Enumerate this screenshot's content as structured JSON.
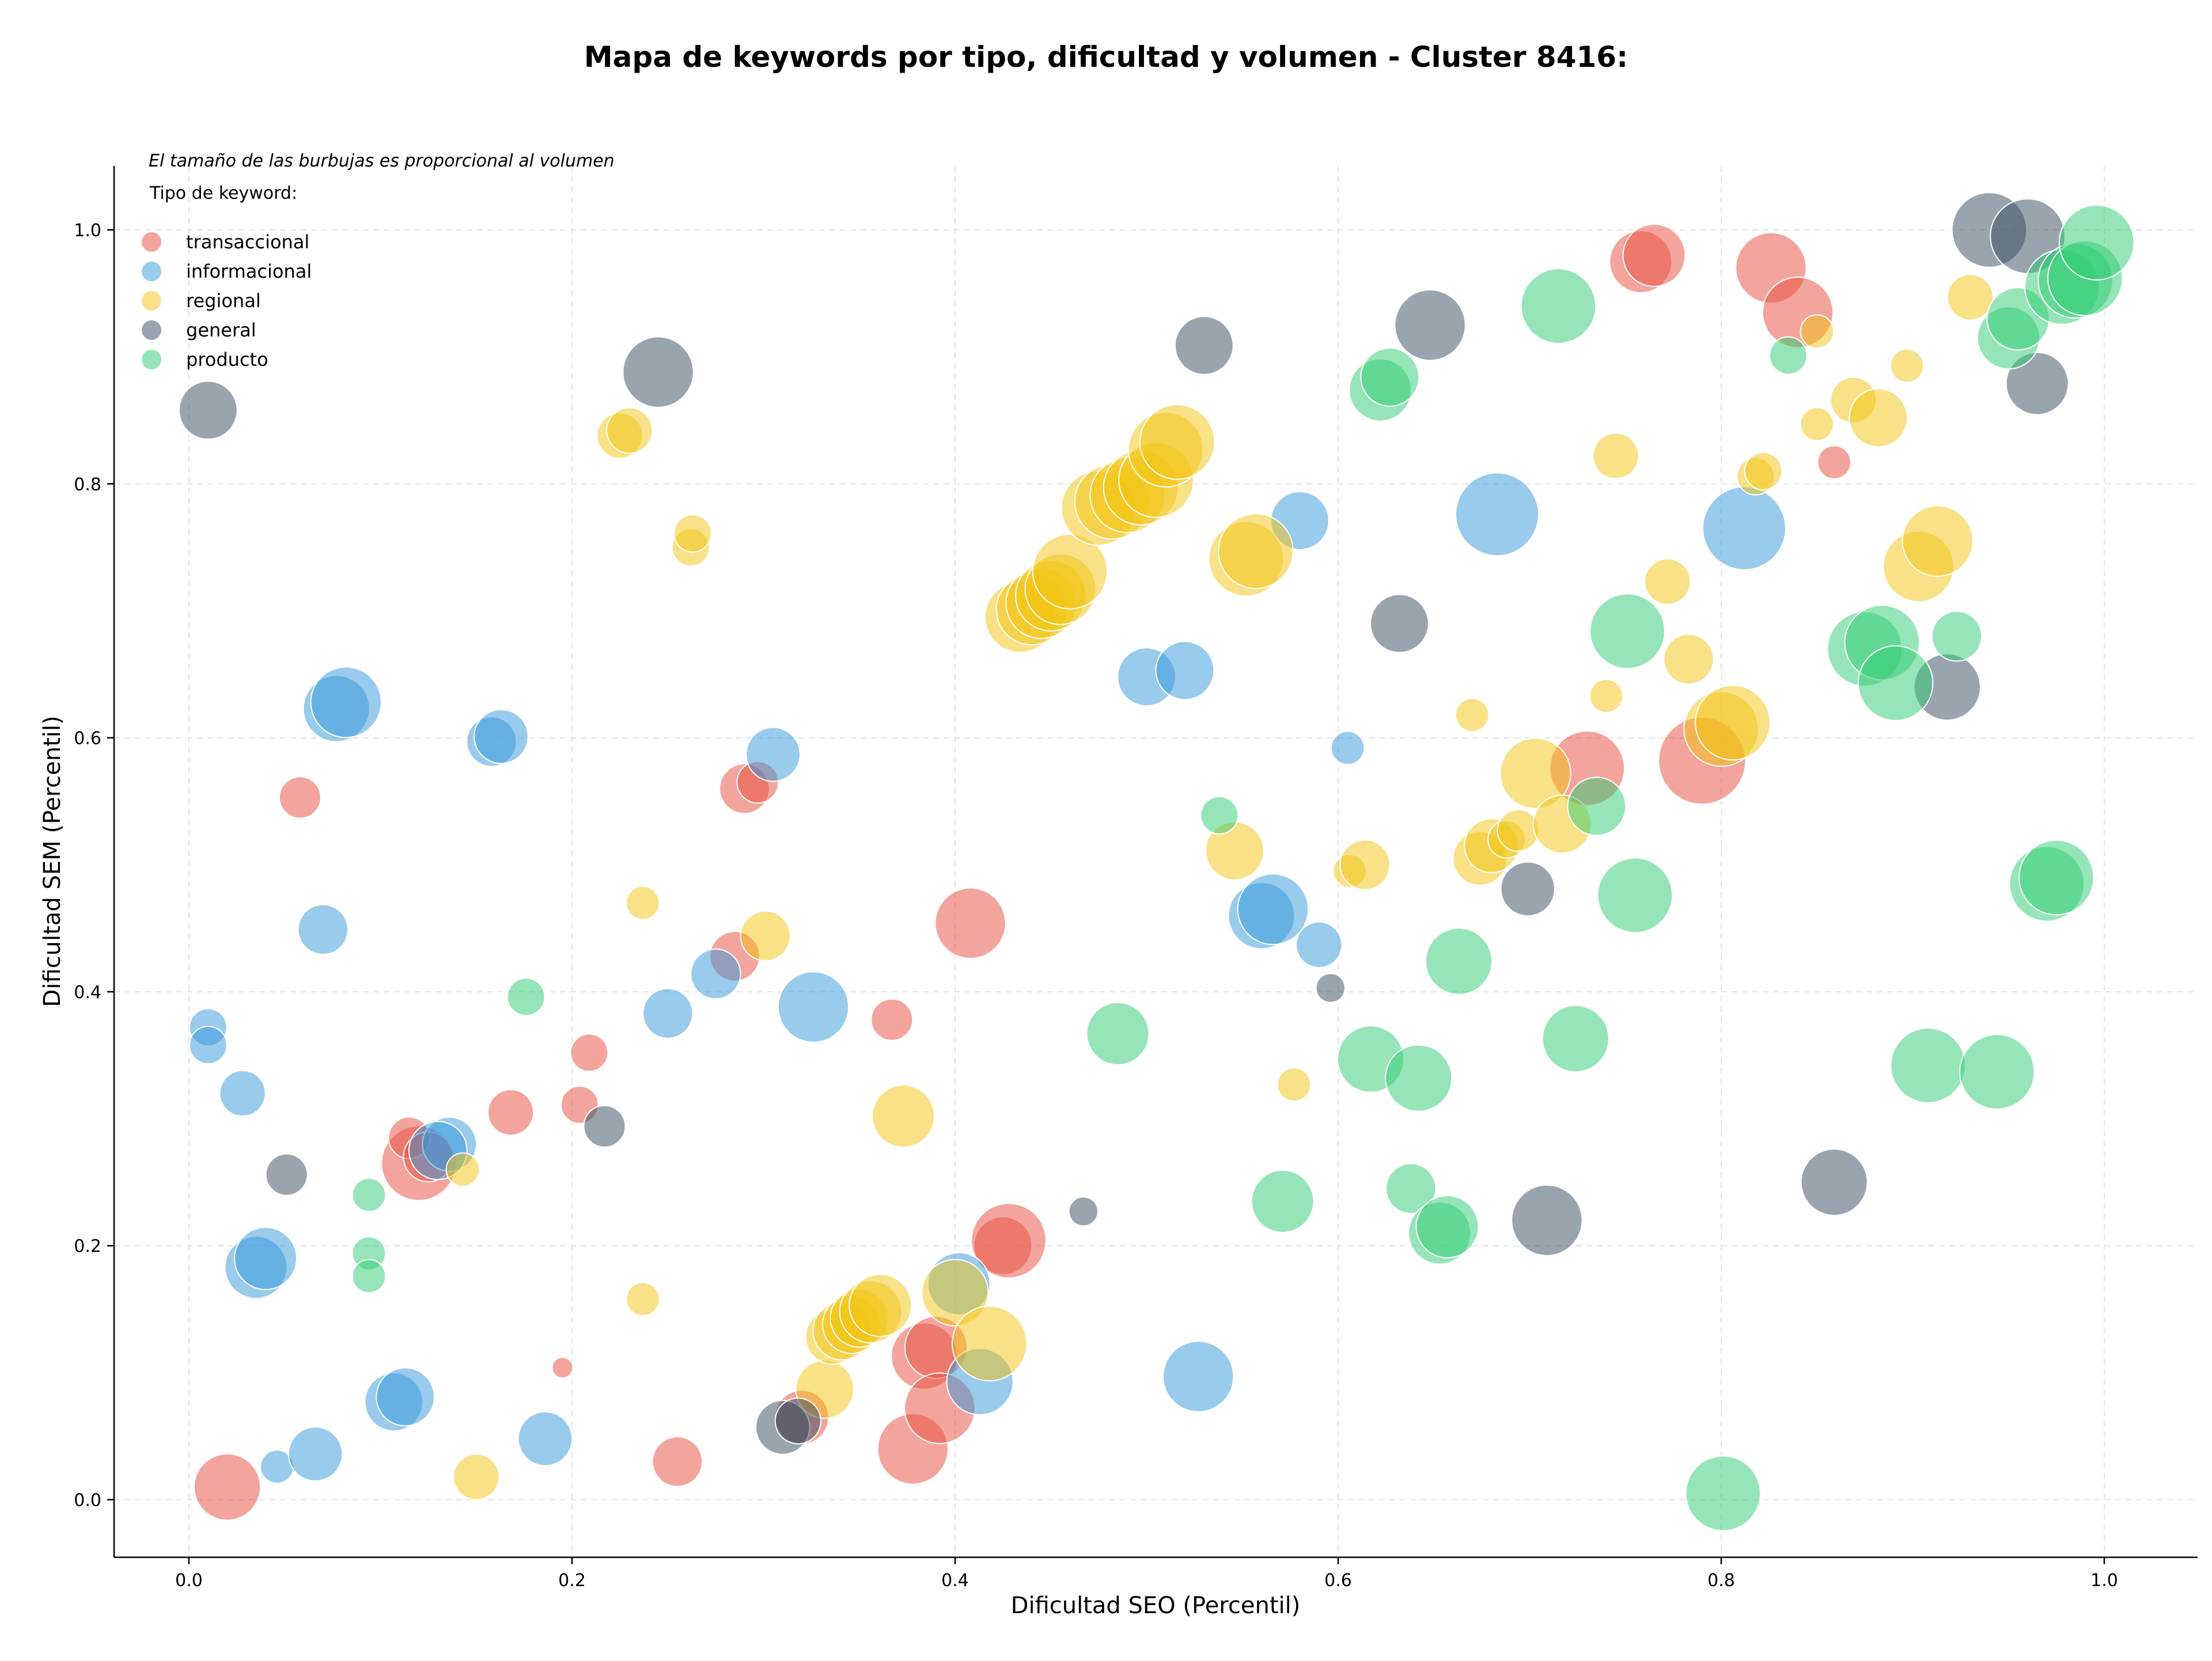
{
  "chart_data": {
    "type": "scatter",
    "title": "Mapa de keywords por tipo, dificultad y volumen - Cluster 8416:",
    "xlabel": "Dificultad SEO (Percentil)",
    "ylabel": "Dificultad SEM (Percentil)",
    "xlim": [
      -0.04,
      1.05
    ],
    "ylim": [
      -0.045,
      1.05
    ],
    "xticks": [
      0.0,
      0.2,
      0.4,
      0.6,
      0.8,
      1.0
    ],
    "yticks": [
      0.0,
      0.2,
      0.4,
      0.6,
      0.8,
      1.0
    ],
    "xtick_labels": [
      "0.0",
      "0.2",
      "0.4",
      "0.6",
      "0.8",
      "1.0"
    ],
    "ytick_labels": [
      "0.0",
      "0.2",
      "0.4",
      "0.6",
      "0.8",
      "1.0"
    ],
    "grid": true,
    "annotation": "El tamaño de las burbujas es proporcional al volumen",
    "legend_title": "Tipo de keyword:",
    "legend_position": "top-left",
    "series": [
      {
        "name": "transaccional",
        "color": "#e74c3c",
        "points": [
          {
            "x": 0.02,
            "y": 0.01,
            "s": 16
          },
          {
            "x": 0.058,
            "y": 0.553,
            "s": 10
          },
          {
            "x": 0.12,
            "y": 0.265,
            "s": 18
          },
          {
            "x": 0.115,
            "y": 0.285,
            "s": 10
          },
          {
            "x": 0.125,
            "y": 0.27,
            "s": 12
          },
          {
            "x": 0.168,
            "y": 0.305,
            "s": 11
          },
          {
            "x": 0.195,
            "y": 0.104,
            "s": 5
          },
          {
            "x": 0.204,
            "y": 0.311,
            "s": 9
          },
          {
            "x": 0.209,
            "y": 0.352,
            "s": 9
          },
          {
            "x": 0.255,
            "y": 0.03,
            "s": 12
          },
          {
            "x": 0.285,
            "y": 0.428,
            "s": 12
          },
          {
            "x": 0.29,
            "y": 0.56,
            "s": 12
          },
          {
            "x": 0.297,
            "y": 0.565,
            "s": 10
          },
          {
            "x": 0.32,
            "y": 0.065,
            "s": 13
          },
          {
            "x": 0.367,
            "y": 0.378,
            "s": 10
          },
          {
            "x": 0.378,
            "y": 0.04,
            "s": 17
          },
          {
            "x": 0.384,
            "y": 0.113,
            "s": 16
          },
          {
            "x": 0.39,
            "y": 0.12,
            "s": 15
          },
          {
            "x": 0.392,
            "y": 0.072,
            "s": 17
          },
          {
            "x": 0.408,
            "y": 0.454,
            "s": 17
          },
          {
            "x": 0.425,
            "y": 0.2,
            "s": 14
          },
          {
            "x": 0.428,
            "y": 0.204,
            "s": 18
          },
          {
            "x": 0.73,
            "y": 0.576,
            "s": 18
          },
          {
            "x": 0.758,
            "y": 0.975,
            "s": 15
          },
          {
            "x": 0.765,
            "y": 0.98,
            "s": 15
          },
          {
            "x": 0.79,
            "y": 0.582,
            "s": 21
          },
          {
            "x": 0.826,
            "y": 0.97,
            "s": 17
          },
          {
            "x": 0.84,
            "y": 0.935,
            "s": 17
          },
          {
            "x": 0.859,
            "y": 0.817,
            "s": 8
          }
        ]
      },
      {
        "name": "informacional",
        "color": "#3498db",
        "points": [
          {
            "x": 0.01,
            "y": 0.372,
            "s": 9
          },
          {
            "x": 0.01,
            "y": 0.358,
            "s": 9
          },
          {
            "x": 0.028,
            "y": 0.32,
            "s": 11
          },
          {
            "x": 0.035,
            "y": 0.183,
            "s": 15
          },
          {
            "x": 0.04,
            "y": 0.19,
            "s": 15
          },
          {
            "x": 0.046,
            "y": 0.026,
            "s": 8
          },
          {
            "x": 0.066,
            "y": 0.036,
            "s": 13
          },
          {
            "x": 0.07,
            "y": 0.449,
            "s": 12
          },
          {
            "x": 0.077,
            "y": 0.623,
            "s": 16
          },
          {
            "x": 0.082,
            "y": 0.628,
            "s": 17
          },
          {
            "x": 0.107,
            "y": 0.077,
            "s": 14
          },
          {
            "x": 0.113,
            "y": 0.081,
            "s": 14
          },
          {
            "x": 0.136,
            "y": 0.28,
            "s": 13
          },
          {
            "x": 0.13,
            "y": 0.275,
            "s": 14
          },
          {
            "x": 0.158,
            "y": 0.597,
            "s": 12
          },
          {
            "x": 0.163,
            "y": 0.601,
            "s": 13
          },
          {
            "x": 0.186,
            "y": 0.048,
            "s": 13
          },
          {
            "x": 0.25,
            "y": 0.383,
            "s": 12
          },
          {
            "x": 0.275,
            "y": 0.414,
            "s": 12
          },
          {
            "x": 0.305,
            "y": 0.587,
            "s": 13
          },
          {
            "x": 0.326,
            "y": 0.388,
            "s": 17
          },
          {
            "x": 0.402,
            "y": 0.17,
            "s": 15
          },
          {
            "x": 0.413,
            "y": 0.093,
            "s": 16
          },
          {
            "x": 0.5,
            "y": 0.648,
            "s": 14
          },
          {
            "x": 0.52,
            "y": 0.653,
            "s": 14
          },
          {
            "x": 0.527,
            "y": 0.097,
            "s": 17
          },
          {
            "x": 0.56,
            "y": 0.46,
            "s": 16
          },
          {
            "x": 0.566,
            "y": 0.465,
            "s": 17
          },
          {
            "x": 0.58,
            "y": 0.771,
            "s": 14
          },
          {
            "x": 0.59,
            "y": 0.437,
            "s": 11
          },
          {
            "x": 0.605,
            "y": 0.592,
            "s": 8
          },
          {
            "x": 0.683,
            "y": 0.776,
            "s": 20
          },
          {
            "x": 0.812,
            "y": 0.765,
            "s": 20
          }
        ]
      },
      {
        "name": "regional",
        "color": "#f1c40f",
        "points": [
          {
            "x": 0.143,
            "y": 0.26,
            "s": 8
          },
          {
            "x": 0.15,
            "y": 0.018,
            "s": 11
          },
          {
            "x": 0.225,
            "y": 0.838,
            "s": 11
          },
          {
            "x": 0.23,
            "y": 0.842,
            "s": 11
          },
          {
            "x": 0.237,
            "y": 0.47,
            "s": 8
          },
          {
            "x": 0.237,
            "y": 0.158,
            "s": 8
          },
          {
            "x": 0.262,
            "y": 0.75,
            "s": 9
          },
          {
            "x": 0.263,
            "y": 0.761,
            "s": 9
          },
          {
            "x": 0.301,
            "y": 0.444,
            "s": 12
          },
          {
            "x": 0.332,
            "y": 0.087,
            "s": 14
          },
          {
            "x": 0.336,
            "y": 0.128,
            "s": 13
          },
          {
            "x": 0.341,
            "y": 0.133,
            "s": 14
          },
          {
            "x": 0.346,
            "y": 0.138,
            "s": 14
          },
          {
            "x": 0.35,
            "y": 0.143,
            "s": 14
          },
          {
            "x": 0.356,
            "y": 0.148,
            "s": 15
          },
          {
            "x": 0.361,
            "y": 0.153,
            "s": 15
          },
          {
            "x": 0.373,
            "y": 0.302,
            "s": 15
          },
          {
            "x": 0.4,
            "y": 0.163,
            "s": 16
          },
          {
            "x": 0.418,
            "y": 0.123,
            "s": 18
          },
          {
            "x": 0.434,
            "y": 0.695,
            "s": 17
          },
          {
            "x": 0.44,
            "y": 0.701,
            "s": 17
          },
          {
            "x": 0.445,
            "y": 0.706,
            "s": 17
          },
          {
            "x": 0.45,
            "y": 0.712,
            "s": 17
          },
          {
            "x": 0.455,
            "y": 0.717,
            "s": 17
          },
          {
            "x": 0.46,
            "y": 0.731,
            "s": 18
          },
          {
            "x": 0.475,
            "y": 0.781,
            "s": 18
          },
          {
            "x": 0.482,
            "y": 0.786,
            "s": 18
          },
          {
            "x": 0.49,
            "y": 0.791,
            "s": 18
          },
          {
            "x": 0.497,
            "y": 0.797,
            "s": 18
          },
          {
            "x": 0.505,
            "y": 0.803,
            "s": 18
          },
          {
            "x": 0.51,
            "y": 0.827,
            "s": 18
          },
          {
            "x": 0.516,
            "y": 0.833,
            "s": 18
          },
          {
            "x": 0.546,
            "y": 0.511,
            "s": 14
          },
          {
            "x": 0.552,
            "y": 0.741,
            "s": 18
          },
          {
            "x": 0.557,
            "y": 0.747,
            "s": 18
          },
          {
            "x": 0.577,
            "y": 0.327,
            "s": 8
          },
          {
            "x": 0.606,
            "y": 0.495,
            "s": 8
          },
          {
            "x": 0.614,
            "y": 0.5,
            "s": 12
          },
          {
            "x": 0.67,
            "y": 0.618,
            "s": 8
          },
          {
            "x": 0.674,
            "y": 0.505,
            "s": 13
          },
          {
            "x": 0.68,
            "y": 0.515,
            "s": 13
          },
          {
            "x": 0.688,
            "y": 0.52,
            "s": 9
          },
          {
            "x": 0.694,
            "y": 0.527,
            "s": 10
          },
          {
            "x": 0.703,
            "y": 0.572,
            "s": 17
          },
          {
            "x": 0.717,
            "y": 0.532,
            "s": 14
          },
          {
            "x": 0.74,
            "y": 0.633,
            "s": 8
          },
          {
            "x": 0.745,
            "y": 0.822,
            "s": 11
          },
          {
            "x": 0.772,
            "y": 0.723,
            "s": 11
          },
          {
            "x": 0.783,
            "y": 0.662,
            "s": 12
          },
          {
            "x": 0.8,
            "y": 0.607,
            "s": 18
          },
          {
            "x": 0.806,
            "y": 0.612,
            "s": 18
          },
          {
            "x": 0.818,
            "y": 0.806,
            "s": 9
          },
          {
            "x": 0.822,
            "y": 0.81,
            "s": 9
          },
          {
            "x": 0.85,
            "y": 0.847,
            "s": 8
          },
          {
            "x": 0.85,
            "y": 0.92,
            "s": 8
          },
          {
            "x": 0.869,
            "y": 0.866,
            "s": 11
          },
          {
            "x": 0.882,
            "y": 0.852,
            "s": 14
          },
          {
            "x": 0.897,
            "y": 0.893,
            "s": 8
          },
          {
            "x": 0.903,
            "y": 0.735,
            "s": 17
          },
          {
            "x": 0.913,
            "y": 0.755,
            "s": 17
          },
          {
            "x": 0.93,
            "y": 0.947,
            "s": 11
          }
        ]
      },
      {
        "name": "general",
        "color": "#34495e",
        "points": [
          {
            "x": 0.01,
            "y": 0.858,
            "s": 14
          },
          {
            "x": 0.051,
            "y": 0.256,
            "s": 10
          },
          {
            "x": 0.217,
            "y": 0.294,
            "s": 10
          },
          {
            "x": 0.245,
            "y": 0.888,
            "s": 17
          },
          {
            "x": 0.31,
            "y": 0.057,
            "s": 13
          },
          {
            "x": 0.318,
            "y": 0.062,
            "s": 11
          },
          {
            "x": 0.467,
            "y": 0.227,
            "s": 7
          },
          {
            "x": 0.53,
            "y": 0.909,
            "s": 14
          },
          {
            "x": 0.596,
            "y": 0.403,
            "s": 7
          },
          {
            "x": 0.632,
            "y": 0.69,
            "s": 14
          },
          {
            "x": 0.648,
            "y": 0.925,
            "s": 17
          },
          {
            "x": 0.699,
            "y": 0.481,
            "s": 13
          },
          {
            "x": 0.709,
            "y": 0.22,
            "s": 17
          },
          {
            "x": 0.859,
            "y": 0.25,
            "s": 16
          },
          {
            "x": 0.918,
            "y": 0.64,
            "s": 16
          },
          {
            "x": 0.94,
            "y": 1.0,
            "s": 18
          },
          {
            "x": 0.96,
            "y": 0.995,
            "s": 18
          },
          {
            "x": 0.965,
            "y": 0.879,
            "s": 15
          }
        ]
      },
      {
        "name": "producto",
        "color": "#2ecc71",
        "points": [
          {
            "x": 0.094,
            "y": 0.24,
            "s": 8
          },
          {
            "x": 0.094,
            "y": 0.194,
            "s": 8
          },
          {
            "x": 0.094,
            "y": 0.176,
            "s": 8
          },
          {
            "x": 0.176,
            "y": 0.396,
            "s": 9
          },
          {
            "x": 0.485,
            "y": 0.367,
            "s": 15
          },
          {
            "x": 0.538,
            "y": 0.539,
            "s": 9
          },
          {
            "x": 0.571,
            "y": 0.235,
            "s": 15
          },
          {
            "x": 0.617,
            "y": 0.347,
            "s": 16
          },
          {
            "x": 0.622,
            "y": 0.874,
            "s": 15
          },
          {
            "x": 0.627,
            "y": 0.884,
            "s": 14
          },
          {
            "x": 0.638,
            "y": 0.245,
            "s": 12
          },
          {
            "x": 0.642,
            "y": 0.332,
            "s": 16
          },
          {
            "x": 0.653,
            "y": 0.21,
            "s": 15
          },
          {
            "x": 0.657,
            "y": 0.215,
            "s": 15
          },
          {
            "x": 0.663,
            "y": 0.424,
            "s": 16
          },
          {
            "x": 0.715,
            "y": 0.94,
            "s": 18
          },
          {
            "x": 0.724,
            "y": 0.363,
            "s": 16
          },
          {
            "x": 0.735,
            "y": 0.546,
            "s": 14
          },
          {
            "x": 0.751,
            "y": 0.684,
            "s": 18
          },
          {
            "x": 0.755,
            "y": 0.476,
            "s": 18
          },
          {
            "x": 0.801,
            "y": 0.005,
            "s": 18
          },
          {
            "x": 0.835,
            "y": 0.901,
            "s": 9
          },
          {
            "x": 0.875,
            "y": 0.67,
            "s": 18
          },
          {
            "x": 0.884,
            "y": 0.675,
            "s": 18
          },
          {
            "x": 0.891,
            "y": 0.643,
            "s": 18
          },
          {
            "x": 0.908,
            "y": 0.342,
            "s": 18
          },
          {
            "x": 0.923,
            "y": 0.68,
            "s": 12
          },
          {
            "x": 0.944,
            "y": 0.337,
            "s": 18
          },
          {
            "x": 0.95,
            "y": 0.915,
            "s": 15
          },
          {
            "x": 0.955,
            "y": 0.93,
            "s": 15
          },
          {
            "x": 0.97,
            "y": 0.485,
            "s": 18
          },
          {
            "x": 0.975,
            "y": 0.49,
            "s": 18
          },
          {
            "x": 0.978,
            "y": 0.955,
            "s": 18
          },
          {
            "x": 0.985,
            "y": 0.96,
            "s": 18
          },
          {
            "x": 0.99,
            "y": 0.962,
            "s": 18
          },
          {
            "x": 0.996,
            "y": 0.99,
            "s": 18
          }
        ]
      }
    ]
  }
}
